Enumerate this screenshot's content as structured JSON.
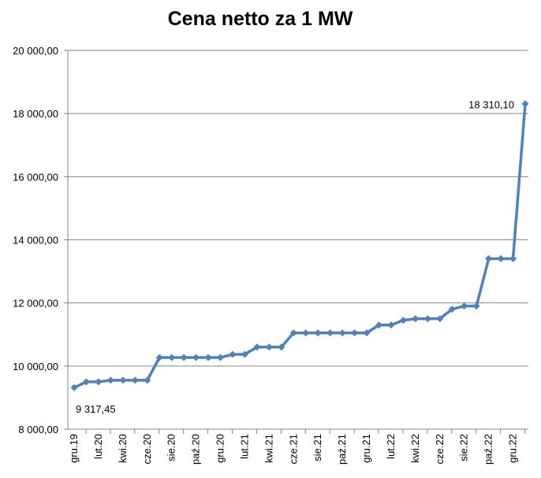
{
  "chart_data": {
    "type": "line",
    "title": "Cena netto za 1 MW",
    "xlabel": "",
    "ylabel": "",
    "ylim": [
      8000,
      20000
    ],
    "y_tick_step": 2000,
    "y_tick_labels": [
      "8 000,00",
      "10 000,00",
      "12 000,00",
      "14 000,00",
      "16 000,00",
      "18 000,00",
      "20 000,00"
    ],
    "grid": "horizontal",
    "legend": "none",
    "series_color": "#4F81BD",
    "categories": [
      "gru.19",
      "sty.20",
      "lut.20",
      "mar.20",
      "kwi.20",
      "maj.20",
      "cze.20",
      "lip.20",
      "sie.20",
      "wrz.20",
      "paź.20",
      "lis.20",
      "gru.20",
      "sty.21",
      "lut.21",
      "mar.21",
      "kwi.21",
      "maj.21",
      "cze.21",
      "lip.21",
      "sie.21",
      "wrz.21",
      "paź.21",
      "lis.21",
      "gru.21",
      "sty.22",
      "lut.22",
      "mar.22",
      "kwi.22",
      "maj.22",
      "cze.22",
      "lip.22",
      "sie.22",
      "wrz.22",
      "paź.22",
      "lis.22",
      "gru.22",
      "sty.23"
    ],
    "shown_category_labels": [
      "gru.19",
      "lut.20",
      "kwi.20",
      "cze.20",
      "sie.20",
      "paź.20",
      "gru.20",
      "lut.21",
      "kwi.21",
      "cze.21",
      "sie.21",
      "paź.21",
      "gru.21",
      "lut.22",
      "kwi.22",
      "cze.22",
      "sie.22",
      "paź.22",
      "gru.22"
    ],
    "series": [
      {
        "values": [
          9317.45,
          9500,
          9500,
          9550,
          9550,
          9550,
          9550,
          10270,
          10270,
          10270,
          10270,
          10270,
          10270,
          10370,
          10370,
          10600,
          10600,
          10600,
          11050,
          11050,
          11050,
          11050,
          11050,
          11050,
          11050,
          11300,
          11300,
          11450,
          11500,
          11500,
          11500,
          11800,
          11900,
          11900,
          13400,
          13400,
          13400,
          18310.1
        ]
      }
    ],
    "data_labels": [
      {
        "index": 0,
        "text": "9 317,45"
      },
      {
        "index": 37,
        "text": "18 310,10"
      }
    ]
  }
}
